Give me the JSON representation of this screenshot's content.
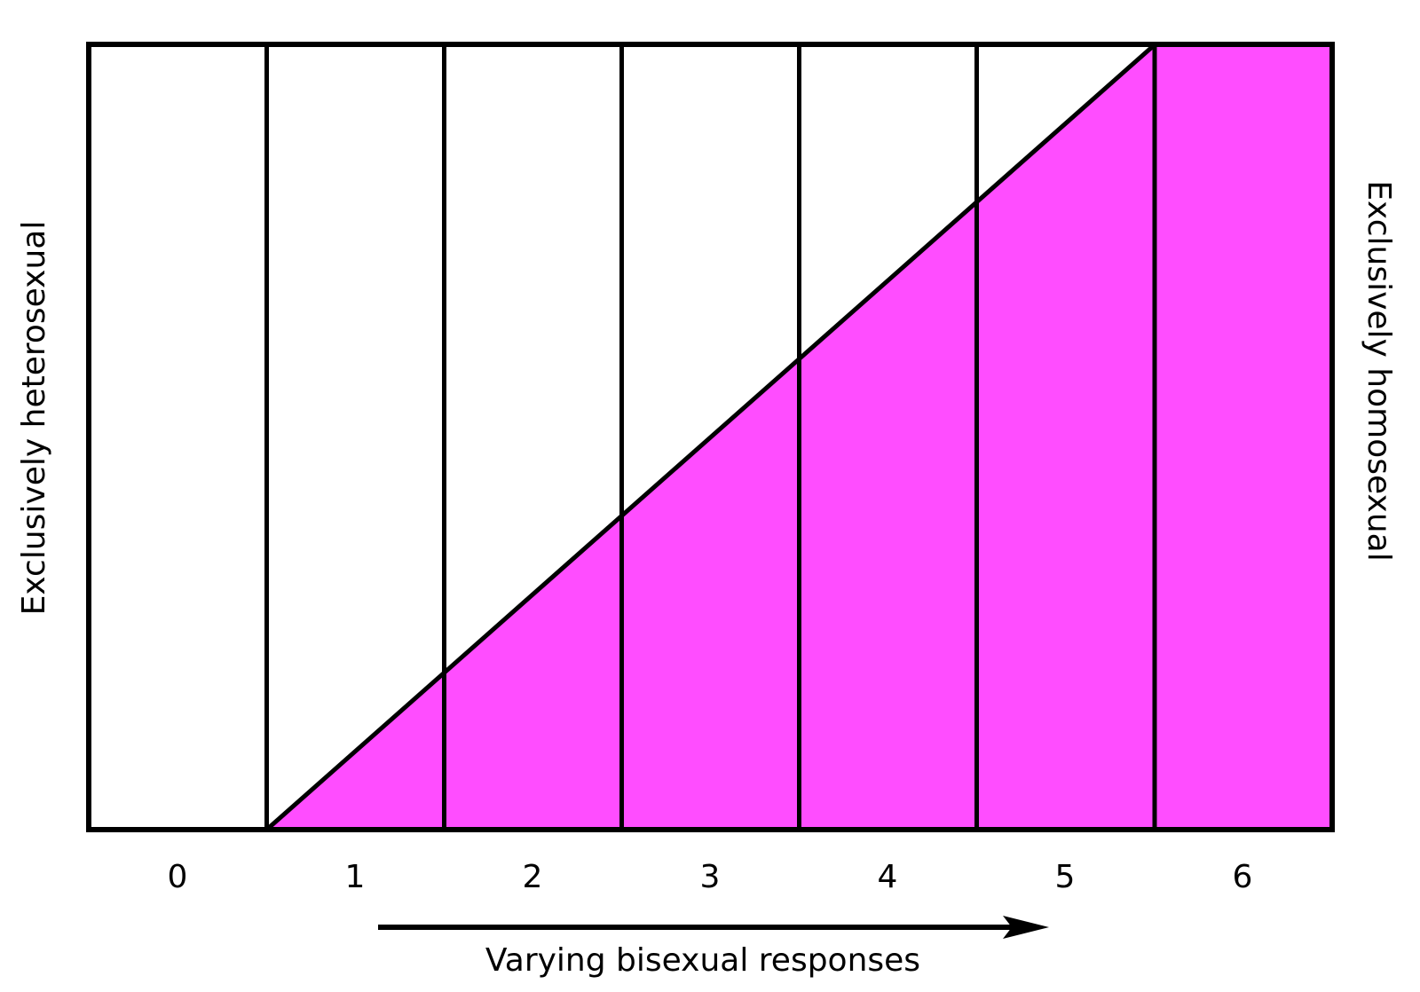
{
  "diagram": {
    "categories": [
      "0",
      "1",
      "2",
      "3",
      "4",
      "5",
      "6"
    ],
    "left_label": "Exclusively heterosexual",
    "right_label": "Exclusively homosexual",
    "arrow_caption": "Varying bisexual responses",
    "fill_color": "#ff4dff",
    "line_color": "#000000",
    "background_color": "#ffffff"
  }
}
